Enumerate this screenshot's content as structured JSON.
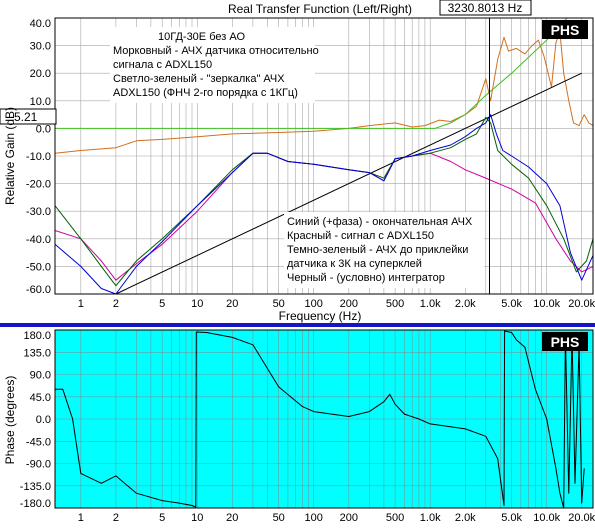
{
  "colors": {
    "page_bg": "#ffffff",
    "upper_plot_bg": "#ffffff",
    "lower_plot_bg": "#00ffff",
    "separator": "#1414c8",
    "grid": "#a8a8a8",
    "magnitude_final": "#0000d8",
    "magnitude_sensor": "#d000a0",
    "magnitude_before_glue": "#006000",
    "integrator": "#000000",
    "sensor_rel": "#d07020",
    "mirror": "#40c020",
    "cursor": "#000000",
    "phase": "#000000"
  },
  "header": {
    "title": "Real Transfer Function (Left/Right)",
    "cursor_readout": "3230.8013 Hz",
    "gain_readout": "5.21"
  },
  "logos": {
    "top": "PHS",
    "bottom": "PHS"
  },
  "annotations": {
    "top_left": [
      "10ГД-30Е без АО",
      "Морковный - АЧХ датчика относительно",
      "сигнала с ADXL150",
      "Светло-зеленый - \"зеркалка\" АЧХ",
      "ADXL150 (ФНЧ 2-го порядка с 1КГц)"
    ],
    "bottom_right": [
      "Синий (+фаза) - окончательная АЧХ",
      "Красный - сигнал с ADXL150",
      "Темно-зеленый - АЧХ до приклейки",
      "датчика к 3К на суперклей",
      "Черный - (условно) интегратор"
    ]
  },
  "chart_data": [
    {
      "type": "line",
      "title": "Real Transfer Function (Left/Right)",
      "xlabel": "Frequency (Hz)",
      "ylabel": "Relative Gain (dB)",
      "xscale": "log",
      "xlim": [
        0.6,
        25000
      ],
      "ylim": [
        -60,
        40
      ],
      "grid": true,
      "x_ticks": [
        {
          "v": 1,
          "label": "1"
        },
        {
          "v": 2,
          "label": "2"
        },
        {
          "v": 5,
          "label": "5"
        },
        {
          "v": 10,
          "label": "10"
        },
        {
          "v": 20,
          "label": "20"
        },
        {
          "v": 50,
          "label": "50"
        },
        {
          "v": 100,
          "label": "100"
        },
        {
          "v": 200,
          "label": "200"
        },
        {
          "v": 500,
          "label": "500"
        },
        {
          "v": 1000,
          "label": "1.0k"
        },
        {
          "v": 2000,
          "label": "2.0k"
        },
        {
          "v": 5000,
          "label": "5.0k"
        },
        {
          "v": 10000,
          "label": "10.0k"
        },
        {
          "v": 20000,
          "label": "20.0k"
        }
      ],
      "y_ticks": [
        {
          "v": 40,
          "label": "40.0"
        },
        {
          "v": 30,
          "label": "30.0"
        },
        {
          "v": 20,
          "label": "20.0"
        },
        {
          "v": 10,
          "label": "10.0"
        },
        {
          "v": 0,
          "label": "0.0"
        },
        {
          "v": -10,
          "label": "-10.0"
        },
        {
          "v": -20,
          "label": "-20.0"
        },
        {
          "v": -30,
          "label": "-30.0"
        },
        {
          "v": -40,
          "label": "-40.0"
        },
        {
          "v": -50,
          "label": "-50.0"
        },
        {
          "v": -60,
          "label": "-60.0"
        }
      ],
      "cursor_x": 3230.8,
      "series": [
        {
          "key": "sensor_rel",
          "color": "#d07020",
          "points": [
            [
              0.6,
              -9
            ],
            [
              1,
              -8
            ],
            [
              2,
              -7
            ],
            [
              3,
              -4.5
            ],
            [
              5,
              -4
            ],
            [
              10,
              -3
            ],
            [
              20,
              -2
            ],
            [
              50,
              -1.5
            ],
            [
              100,
              -1
            ],
            [
              200,
              0
            ],
            [
              300,
              1
            ],
            [
              500,
              2
            ],
            [
              700,
              0.5
            ],
            [
              900,
              1
            ],
            [
              1200,
              3
            ],
            [
              1500,
              2.5
            ],
            [
              2000,
              5
            ],
            [
              2500,
              8
            ],
            [
              3000,
              18
            ],
            [
              3300,
              10
            ],
            [
              3800,
              25
            ],
            [
              4300,
              33
            ],
            [
              4700,
              28
            ],
            [
              5500,
              29
            ],
            [
              6500,
              27
            ],
            [
              7500,
              30
            ],
            [
              8500,
              32
            ],
            [
              9500,
              26
            ],
            [
              11000,
              15
            ],
            [
              12000,
              31
            ],
            [
              13000,
              35
            ],
            [
              14000,
              20
            ],
            [
              15500,
              10
            ],
            [
              17000,
              2
            ],
            [
              19000,
              1
            ],
            [
              21000,
              5
            ],
            [
              23000,
              2
            ],
            [
              25000,
              1
            ]
          ]
        },
        {
          "key": "mirror",
          "color": "#40c020",
          "points": [
            [
              0.6,
              0
            ],
            [
              1100,
              0
            ],
            [
              1500,
              2
            ],
            [
              2000,
              5
            ],
            [
              3000,
              12
            ],
            [
              5000,
              20
            ],
            [
              10000,
              32
            ],
            [
              15000,
              40
            ],
            [
              25000,
              40
            ]
          ]
        },
        {
          "key": "integrator",
          "color": "#000000",
          "points": [
            [
              2,
              -60
            ],
            [
              20000,
              20
            ]
          ]
        },
        {
          "key": "magnitude_sensor",
          "color": "#d000a0",
          "points": [
            [
              0.6,
              -37
            ],
            [
              1,
              -40
            ],
            [
              1.5,
              -48
            ],
            [
              2,
              -55
            ],
            [
              3,
              -49
            ],
            [
              5,
              -42
            ],
            [
              10,
              -30
            ],
            [
              20,
              -16
            ],
            [
              30,
              -9
            ],
            [
              40,
              -9
            ],
            [
              60,
              -12
            ],
            [
              100,
              -13
            ],
            [
              200,
              -15
            ],
            [
              300,
              -16
            ],
            [
              400,
              -19
            ],
            [
              500,
              -11
            ],
            [
              700,
              -10
            ],
            [
              1000,
              -9
            ],
            [
              1500,
              -12
            ],
            [
              2000,
              -15
            ],
            [
              3000,
              -18
            ],
            [
              5000,
              -22
            ],
            [
              8000,
              -27
            ],
            [
              12000,
              -40
            ],
            [
              16000,
              -48
            ],
            [
              20000,
              -52
            ],
            [
              25000,
              -50
            ]
          ]
        },
        {
          "key": "magnitude_before_glue",
          "color": "#006000",
          "points": [
            [
              0.6,
              -28
            ],
            [
              1,
              -40
            ],
            [
              1.5,
              -50
            ],
            [
              2,
              -57
            ],
            [
              3,
              -48
            ],
            [
              5,
              -40
            ],
            [
              10,
              -28
            ],
            [
              20,
              -15
            ],
            [
              30,
              -9
            ],
            [
              40,
              -9
            ],
            [
              60,
              -12
            ],
            [
              100,
              -13
            ],
            [
              200,
              -15
            ],
            [
              300,
              -16
            ],
            [
              400,
              -18
            ],
            [
              500,
              -11
            ],
            [
              700,
              -10
            ],
            [
              1000,
              -9
            ],
            [
              1500,
              -7
            ],
            [
              2000,
              -4
            ],
            [
              2500,
              -2
            ],
            [
              3000,
              4
            ],
            [
              3300,
              2
            ],
            [
              3800,
              -8
            ],
            [
              5000,
              -13
            ],
            [
              7000,
              -18
            ],
            [
              10000,
              -28
            ],
            [
              14000,
              -40
            ],
            [
              18000,
              -52
            ],
            [
              22000,
              -48
            ],
            [
              25000,
              -40
            ]
          ]
        },
        {
          "key": "magnitude_final",
          "color": "#0000d8",
          "points": [
            [
              0.6,
              -42
            ],
            [
              1,
              -50
            ],
            [
              1.5,
              -58
            ],
            [
              2,
              -60
            ],
            [
              3,
              -50
            ],
            [
              5,
              -41
            ],
            [
              10,
              -28
            ],
            [
              20,
              -16
            ],
            [
              30,
              -9
            ],
            [
              40,
              -9
            ],
            [
              60,
              -12
            ],
            [
              100,
              -13
            ],
            [
              200,
              -15
            ],
            [
              300,
              -16
            ],
            [
              400,
              -19
            ],
            [
              500,
              -11
            ],
            [
              700,
              -10
            ],
            [
              1000,
              -8
            ],
            [
              1500,
              -6
            ],
            [
              2000,
              -3
            ],
            [
              2500,
              0
            ],
            [
              3000,
              2
            ],
            [
              3300,
              5
            ],
            [
              3700,
              -2
            ],
            [
              4200,
              -8
            ],
            [
              5000,
              -10
            ],
            [
              7000,
              -14
            ],
            [
              10000,
              -20
            ],
            [
              13000,
              -28
            ],
            [
              16000,
              -45
            ],
            [
              20000,
              -55
            ],
            [
              25000,
              -46
            ]
          ]
        }
      ]
    },
    {
      "type": "line",
      "xlabel": "",
      "ylabel": "Phase (degrees)",
      "xscale": "log",
      "xlim": [
        0.6,
        25000
      ],
      "ylim": [
        -180,
        180
      ],
      "grid": true,
      "x_ticks": [
        {
          "v": 1,
          "label": "1"
        },
        {
          "v": 2,
          "label": "2"
        },
        {
          "v": 5,
          "label": "5"
        },
        {
          "v": 10,
          "label": "10"
        },
        {
          "v": 20,
          "label": "20"
        },
        {
          "v": 50,
          "label": "50"
        },
        {
          "v": 100,
          "label": "100"
        },
        {
          "v": 200,
          "label": "200"
        },
        {
          "v": 500,
          "label": "500"
        },
        {
          "v": 1000,
          "label": "1.0k"
        },
        {
          "v": 2000,
          "label": "2.0k"
        },
        {
          "v": 5000,
          "label": "5.0k"
        },
        {
          "v": 10000,
          "label": "10.0k"
        },
        {
          "v": 20000,
          "label": "20.0k"
        }
      ],
      "y_ticks": [
        {
          "v": 180,
          "label": "180.0"
        },
        {
          "v": 135,
          "label": "135.0"
        },
        {
          "v": 90,
          "label": "90.0"
        },
        {
          "v": 45,
          "label": "45.0"
        },
        {
          "v": 0,
          "label": "0.0"
        },
        {
          "v": -45,
          "label": "-45.0"
        },
        {
          "v": -90,
          "label": "-90.0"
        },
        {
          "v": -135,
          "label": "-135.0"
        },
        {
          "v": -180,
          "label": "-180.0"
        }
      ],
      "series": [
        {
          "key": "phase",
          "color": "#000000",
          "points": [
            [
              0.6,
              60
            ],
            [
              0.7,
              60
            ],
            [
              0.85,
              0
            ],
            [
              1,
              -110
            ],
            [
              1.5,
              -130
            ],
            [
              2,
              -115
            ],
            [
              3,
              -150
            ],
            [
              5,
              -165
            ],
            [
              7,
              -170
            ],
            [
              9,
              -175
            ],
            [
              9.7,
              -178
            ],
            [
              9.8,
              176
            ],
            [
              12,
              175
            ],
            [
              20,
              165
            ],
            [
              30,
              150
            ],
            [
              50,
              65
            ],
            [
              80,
              25
            ],
            [
              100,
              15
            ],
            [
              200,
              5
            ],
            [
              300,
              15
            ],
            [
              400,
              35
            ],
            [
              450,
              50
            ],
            [
              500,
              30
            ],
            [
              600,
              10
            ],
            [
              800,
              0
            ],
            [
              1000,
              -10
            ],
            [
              2000,
              -20
            ],
            [
              3000,
              -35
            ],
            [
              3800,
              -80
            ],
            [
              4300,
              -175
            ],
            [
              4350,
              178
            ],
            [
              5000,
              175
            ],
            [
              5500,
              160
            ],
            [
              6500,
              145
            ],
            [
              8000,
              60
            ],
            [
              10000,
              0
            ],
            [
              12000,
              -100
            ],
            [
              13000,
              -150
            ],
            [
              14000,
              -180
            ],
            [
              14500,
              170
            ],
            [
              15500,
              -150
            ],
            [
              16500,
              170
            ],
            [
              17500,
              -130
            ],
            [
              19000,
              150
            ],
            [
              20000,
              -170
            ],
            [
              21000,
              -100
            ]
          ]
        }
      ]
    }
  ]
}
